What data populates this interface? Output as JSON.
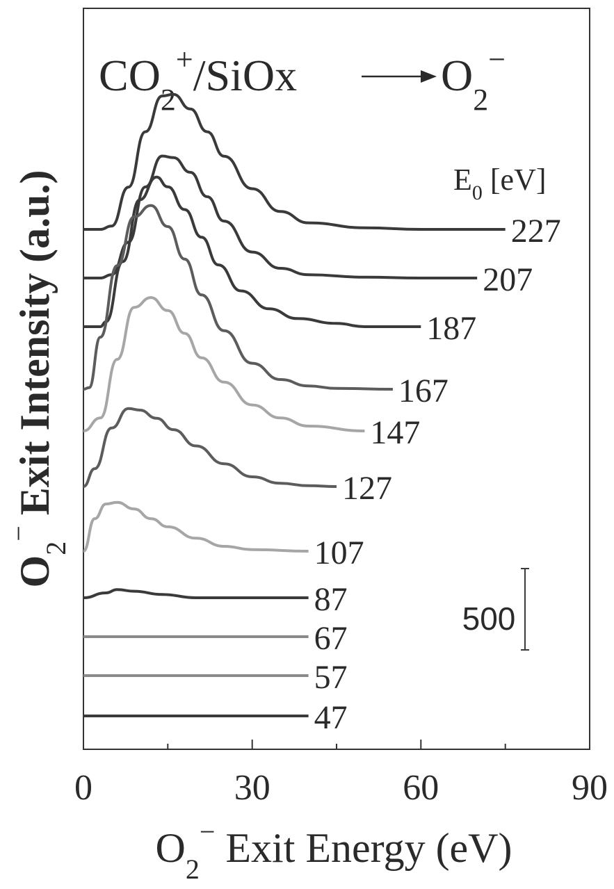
{
  "chart_data": {
    "type": "line",
    "title": {
      "main": "CO",
      "sub1": "2",
      "sup1": "+",
      "middle": "/SiOx",
      "target": "O",
      "sub2": "2",
      "sup2": "−"
    },
    "xlabel": {
      "main": "O",
      "sub": "2",
      "sup": "−",
      "rest": " Exit Energy (eV)"
    },
    "ylabel": {
      "main": "O",
      "sub": "2",
      "sup": "−",
      "rest": " Exit Intensity (a.u.)"
    },
    "legend_title": {
      "main": "E",
      "sub": "0",
      "rest": " [eV]"
    },
    "xlim": [
      0,
      90
    ],
    "x_ticks": [
      "0",
      "30",
      "60",
      "90"
    ],
    "scale_bar": {
      "label": "500",
      "value": 500
    },
    "series": [
      {
        "name": "227",
        "color": "#3a3a3a",
        "baseline": 330,
        "x": [
          0,
          3,
          5,
          8,
          11,
          14,
          16,
          19,
          22,
          25,
          30,
          35,
          40,
          50,
          60,
          75
        ],
        "y": [
          0,
          0,
          20,
          260,
          600,
          820,
          830,
          740,
          600,
          450,
          250,
          110,
          40,
          10,
          0,
          0
        ]
      },
      {
        "name": "207",
        "color": "#3a3a3a",
        "baseline": 400,
        "x": [
          0,
          3,
          5,
          8,
          11,
          14,
          16,
          19,
          22,
          25,
          30,
          35,
          40,
          50,
          60,
          70
        ],
        "y": [
          0,
          0,
          20,
          220,
          560,
          750,
          740,
          650,
          500,
          350,
          160,
          60,
          20,
          5,
          0,
          0
        ]
      },
      {
        "name": "187",
        "color": "#3a3a3a",
        "baseline": 470,
        "x": [
          0,
          3,
          4,
          7,
          10,
          13,
          15,
          18,
          21,
          24,
          28,
          33,
          38,
          45,
          50,
          60
        ],
        "y": [
          0,
          0,
          30,
          400,
          780,
          920,
          860,
          720,
          550,
          380,
          220,
          110,
          50,
          20,
          0,
          0
        ]
      },
      {
        "name": "167",
        "color": "#5c5c5c",
        "baseline": 560,
        "x": [
          0,
          1,
          3,
          6,
          9,
          12,
          15,
          18,
          21,
          25,
          30,
          35,
          40,
          45,
          55
        ],
        "y": [
          0,
          10,
          320,
          760,
          1060,
          1130,
          1000,
          800,
          580,
          360,
          160,
          60,
          20,
          5,
          0
        ]
      },
      {
        "name": "147",
        "color": "#a6a6a6",
        "baseline": 620,
        "x": [
          0,
          3,
          6,
          9,
          12,
          15,
          18,
          21,
          25,
          30,
          35,
          40,
          50
        ],
        "y": [
          0,
          80,
          440,
          760,
          820,
          740,
          600,
          450,
          300,
          160,
          80,
          30,
          0
        ]
      },
      {
        "name": "127",
        "color": "#5c5c5c",
        "baseline": 700,
        "x": [
          0,
          2,
          5,
          8,
          10,
          13,
          16,
          20,
          25,
          30,
          35,
          40,
          45
        ],
        "y": [
          0,
          110,
          360,
          480,
          470,
          420,
          350,
          250,
          140,
          60,
          20,
          5,
          0
        ]
      },
      {
        "name": "107",
        "color": "#a6a6a6",
        "baseline": 793,
        "x": [
          0,
          2,
          4,
          6,
          9,
          12,
          15,
          20,
          25,
          30,
          40
        ],
        "y": [
          0,
          200,
          290,
          300,
          260,
          200,
          150,
          80,
          30,
          10,
          0
        ]
      },
      {
        "name": "87",
        "color": "#3a3a3a",
        "baseline": 860,
        "x": [
          0,
          4,
          6,
          9,
          14,
          20,
          40
        ],
        "y": [
          0,
          30,
          50,
          40,
          20,
          0,
          0
        ]
      },
      {
        "name": "67",
        "color": "#8a8a8a",
        "baseline": 916,
        "x": [
          0,
          40
        ],
        "y": [
          0,
          0
        ]
      },
      {
        "name": "57",
        "color": "#8a8a8a",
        "baseline": 972,
        "x": [
          0,
          40
        ],
        "y": [
          0,
          0
        ]
      },
      {
        "name": "47",
        "color": "#3a3a3a",
        "baseline": 1030,
        "x": [
          0,
          40
        ],
        "y": [
          0,
          0
        ]
      }
    ]
  }
}
